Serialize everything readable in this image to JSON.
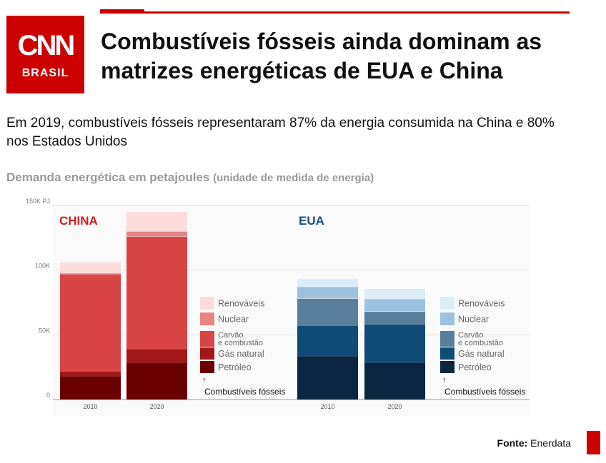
{
  "brand": {
    "logo_main": "CNN",
    "logo_sub": "BRASIL",
    "color": "#cc0000"
  },
  "header": {
    "title": "Combustíveis fósseis ainda dominam as matrizes energéticas de EUA e China",
    "subtitle": "Em 2019, combustíveis fósseis representaram 87% da energia consumida na China e 80% nos Estados Unidos"
  },
  "chart_title": {
    "main": "Demanda energética em petajoules",
    "paren": "(unidade de medida de energia)"
  },
  "footer": {
    "label": "Fonte:",
    "source": "Enerdata"
  },
  "chart_data": {
    "type": "bar",
    "stacked": true,
    "unit": "PJ",
    "ylim": [
      0,
      150000
    ],
    "yticks": [
      {
        "value": 0,
        "label": "0"
      },
      {
        "value": 50000,
        "label": "50K"
      },
      {
        "value": 100000,
        "label": "100K"
      },
      {
        "value": 150000,
        "label": "150K PJ"
      }
    ],
    "fossil_label": "Combustíveis fósseis",
    "fossil_arrow": "↑",
    "groups": [
      {
        "name": "CHINA",
        "color": "#cc1f1f",
        "categories": [
          "2010",
          "2020"
        ],
        "legend": [
          {
            "name": "Renováveis",
            "color": "#fddcdc"
          },
          {
            "name": "Nuclear",
            "color": "#e88383"
          },
          {
            "name": "Carvão e combustão",
            "color": "#d94545"
          },
          {
            "name": "Gás natural",
            "color": "#a31818"
          },
          {
            "name": "Petróleo",
            "color": "#6b0000"
          }
        ],
        "series": [
          {
            "name": "Petróleo",
            "color": "#6b0000",
            "values": [
              18000,
              28500
            ]
          },
          {
            "name": "Gás natural",
            "color": "#a31818",
            "values": [
              3500,
              10500
            ]
          },
          {
            "name": "Carvão e combustão",
            "color": "#d94545",
            "values": [
              75500,
              87000
            ]
          },
          {
            "name": "Nuclear",
            "color": "#e88383",
            "values": [
              700,
              3800
            ]
          },
          {
            "name": "Renováveis",
            "color": "#fddcdc",
            "values": [
              8300,
              15200
            ]
          }
        ]
      },
      {
        "name": "EUA",
        "color": "#1b4f7d",
        "categories": [
          "2010",
          "2020"
        ],
        "legend": [
          {
            "name": "Renováveis",
            "color": "#dcecf7"
          },
          {
            "name": "Nuclear",
            "color": "#9cc2de"
          },
          {
            "name": "Carvão e combustão",
            "color": "#5a7f9c"
          },
          {
            "name": "Gás natural",
            "color": "#0f4c78"
          },
          {
            "name": "Petróleo",
            "color": "#0c2540"
          }
        ],
        "series": [
          {
            "name": "Petróleo",
            "color": "#0c2540",
            "values": [
              33500,
              28500
            ]
          },
          {
            "name": "Gás natural",
            "color": "#0f4c78",
            "values": [
              23500,
              29500
            ]
          },
          {
            "name": "Carvão e combustão",
            "color": "#5a7f9c",
            "values": [
              21000,
              10000
            ]
          },
          {
            "name": "Nuclear",
            "color": "#9cc2de",
            "values": [
              9000,
              9500
            ]
          },
          {
            "name": "Renováveis",
            "color": "#dcecf7",
            "values": [
              6000,
              8000
            ]
          }
        ]
      }
    ]
  }
}
